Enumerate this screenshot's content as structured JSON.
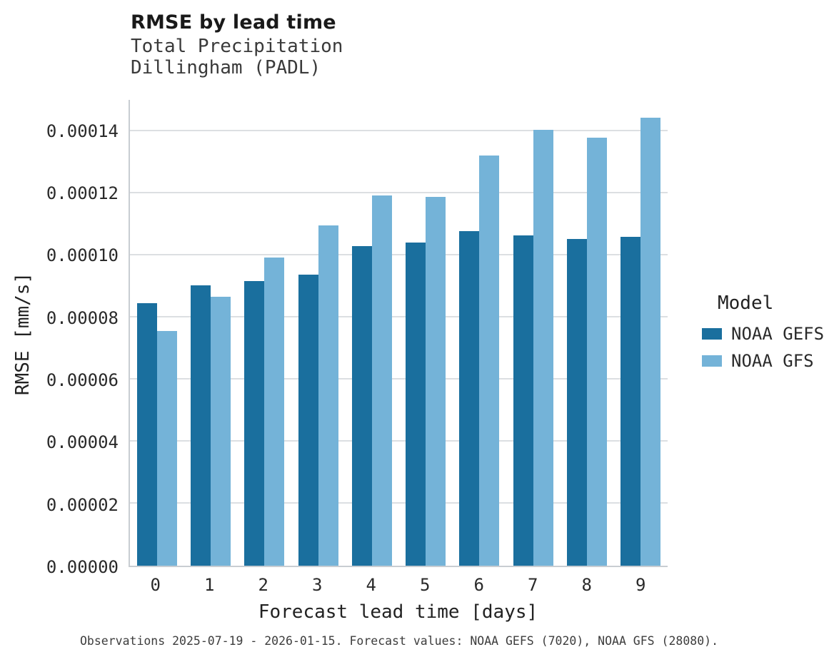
{
  "caption": "Observations 2025-07-19 - 2026-01-15. Forecast values: NOAA GEFS (7020), NOAA GFS (28080).",
  "chart_data": {
    "type": "bar",
    "title": "RMSE by lead time",
    "subtitle_lines": [
      "Total Precipitation",
      "Dillingham (PADL)"
    ],
    "xlabel": "Forecast lead time [days]",
    "ylabel": "RMSE [mm/s]",
    "categories": [
      "0",
      "1",
      "2",
      "3",
      "4",
      "5",
      "6",
      "7",
      "8",
      "9"
    ],
    "series": [
      {
        "name": "NOAA GEFS",
        "color": "#1a6f9e",
        "values": [
          8.45e-05,
          9.03e-05,
          9.17e-05,
          9.38e-05,
          0.000103,
          0.000104,
          0.0001078,
          0.0001063,
          0.0001053,
          0.0001058
        ]
      },
      {
        "name": "NOAA GFS",
        "color": "#74b3d8",
        "values": [
          7.55e-05,
          8.65e-05,
          9.93e-05,
          0.0001095,
          0.0001192,
          0.0001188,
          0.0001322,
          0.0001403,
          0.0001378,
          0.0001443
        ]
      }
    ],
    "yticks": [
      0.0,
      2e-05,
      4e-05,
      6e-05,
      8e-05,
      0.0001,
      0.00012,
      0.00014
    ],
    "ytick_labels": [
      "0.00000",
      "0.00002",
      "0.00004",
      "0.00006",
      "0.00008",
      "0.00010",
      "0.00012",
      "0.00014"
    ],
    "ylim": [
      0,
      0.00015
    ],
    "grid": true,
    "legend_title": "Model",
    "legend_position": "right"
  }
}
